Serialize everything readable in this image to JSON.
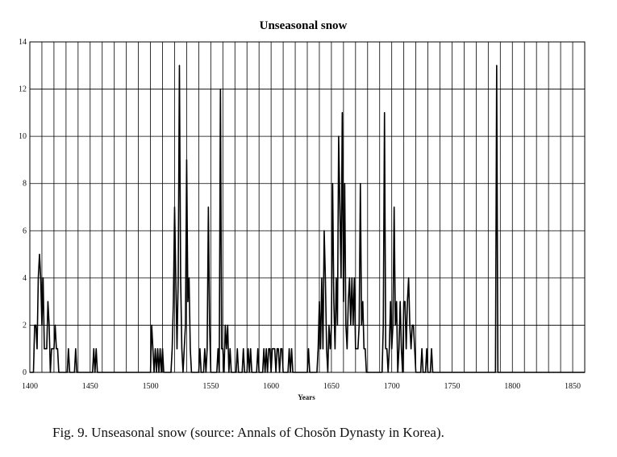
{
  "caption": "Fig. 9. Unseasonal snow (source: Annals of Chosŏn Dynasty in Korea).",
  "chart_data": {
    "type": "line",
    "title": "Unseasonal snow",
    "xlabel": "Years",
    "ylabel": "",
    "xlim": [
      1400,
      1860
    ],
    "ylim": [
      0,
      14
    ],
    "xticks": [
      1400,
      1450,
      1500,
      1550,
      1600,
      1650,
      1700,
      1750,
      1800,
      1850
    ],
    "yticks": [
      0,
      2,
      4,
      6,
      8,
      10,
      12,
      14
    ],
    "grid": true,
    "line_color": "#000000",
    "series": [
      {
        "name": "",
        "points": [
          [
            1400,
            0
          ],
          [
            1403,
            0
          ],
          [
            1404,
            2
          ],
          [
            1405,
            2
          ],
          [
            1406,
            1
          ],
          [
            1407,
            4
          ],
          [
            1408,
            5
          ],
          [
            1409,
            4
          ],
          [
            1410,
            2
          ],
          [
            1411,
            4
          ],
          [
            1412,
            1
          ],
          [
            1413,
            1
          ],
          [
            1414,
            1
          ],
          [
            1415,
            3
          ],
          [
            1416,
            2
          ],
          [
            1417,
            0
          ],
          [
            1418,
            1
          ],
          [
            1419,
            1
          ],
          [
            1420,
            1
          ],
          [
            1421,
            2
          ],
          [
            1422,
            1
          ],
          [
            1423,
            1
          ],
          [
            1424,
            0
          ],
          [
            1431,
            0
          ],
          [
            1432,
            1
          ],
          [
            1433,
            0
          ],
          [
            1437,
            0
          ],
          [
            1438,
            1
          ],
          [
            1439,
            0
          ],
          [
            1452,
            0
          ],
          [
            1453,
            1
          ],
          [
            1454,
            0
          ],
          [
            1455,
            1
          ],
          [
            1456,
            0
          ],
          [
            1500,
            0
          ],
          [
            1501,
            2
          ],
          [
            1502,
            1
          ],
          [
            1503,
            0
          ],
          [
            1504,
            1
          ],
          [
            1505,
            0
          ],
          [
            1506,
            1
          ],
          [
            1507,
            0
          ],
          [
            1508,
            1
          ],
          [
            1509,
            0
          ],
          [
            1510,
            1
          ],
          [
            1511,
            0
          ],
          [
            1517,
            0
          ],
          [
            1518,
            1
          ],
          [
            1519,
            3
          ],
          [
            1520,
            7
          ],
          [
            1521,
            4
          ],
          [
            1522,
            1
          ],
          [
            1523,
            4
          ],
          [
            1524,
            13
          ],
          [
            1525,
            4
          ],
          [
            1526,
            1
          ],
          [
            1527,
            0
          ],
          [
            1528,
            1
          ],
          [
            1529,
            2
          ],
          [
            1530,
            9
          ],
          [
            1531,
            3
          ],
          [
            1532,
            4
          ],
          [
            1533,
            1
          ],
          [
            1534,
            0
          ],
          [
            1540,
            0
          ],
          [
            1541,
            1
          ],
          [
            1542,
            0
          ],
          [
            1544,
            0
          ],
          [
            1545,
            1
          ],
          [
            1546,
            0
          ],
          [
            1547,
            1
          ],
          [
            1548,
            7
          ],
          [
            1549,
            2
          ],
          [
            1550,
            0
          ],
          [
            1555,
            0
          ],
          [
            1556,
            1
          ],
          [
            1557,
            0
          ],
          [
            1558,
            12
          ],
          [
            1559,
            1
          ],
          [
            1560,
            1
          ],
          [
            1561,
            0
          ],
          [
            1562,
            2
          ],
          [
            1563,
            1
          ],
          [
            1564,
            2
          ],
          [
            1565,
            0
          ],
          [
            1566,
            1
          ],
          [
            1567,
            0
          ],
          [
            1571,
            0
          ],
          [
            1572,
            1
          ],
          [
            1573,
            0
          ],
          [
            1576,
            0
          ],
          [
            1577,
            1
          ],
          [
            1578,
            0
          ],
          [
            1580,
            0
          ],
          [
            1581,
            1
          ],
          [
            1582,
            0
          ],
          [
            1583,
            1
          ],
          [
            1584,
            0
          ],
          [
            1588,
            0
          ],
          [
            1589,
            1
          ],
          [
            1590,
            0
          ],
          [
            1593,
            0
          ],
          [
            1594,
            1
          ],
          [
            1595,
            0
          ],
          [
            1596,
            1
          ],
          [
            1597,
            0
          ],
          [
            1598,
            1
          ],
          [
            1599,
            1
          ],
          [
            1600,
            0
          ],
          [
            1601,
            1
          ],
          [
            1602,
            1
          ],
          [
            1603,
            1
          ],
          [
            1604,
            0
          ],
          [
            1605,
            1
          ],
          [
            1606,
            1
          ],
          [
            1607,
            0
          ],
          [
            1608,
            1
          ],
          [
            1609,
            1
          ],
          [
            1610,
            0
          ],
          [
            1614,
            0
          ],
          [
            1615,
            1
          ],
          [
            1616,
            0
          ],
          [
            1617,
            1
          ],
          [
            1618,
            0
          ],
          [
            1630,
            0
          ],
          [
            1631,
            1
          ],
          [
            1632,
            0
          ],
          [
            1638,
            0
          ],
          [
            1639,
            1
          ],
          [
            1640,
            3
          ],
          [
            1641,
            1
          ],
          [
            1642,
            4
          ],
          [
            1643,
            1
          ],
          [
            1644,
            6
          ],
          [
            1645,
            4
          ],
          [
            1646,
            1
          ],
          [
            1647,
            0
          ],
          [
            1648,
            2
          ],
          [
            1649,
            1
          ],
          [
            1650,
            2
          ],
          [
            1651,
            8
          ],
          [
            1652,
            3
          ],
          [
            1653,
            1
          ],
          [
            1654,
            4
          ],
          [
            1655,
            2
          ],
          [
            1656,
            10
          ],
          [
            1657,
            7
          ],
          [
            1658,
            4
          ],
          [
            1659,
            11
          ],
          [
            1660,
            3
          ],
          [
            1661,
            8
          ],
          [
            1662,
            2
          ],
          [
            1663,
            1
          ],
          [
            1664,
            3
          ],
          [
            1665,
            4
          ],
          [
            1666,
            2
          ],
          [
            1667,
            4
          ],
          [
            1668,
            2
          ],
          [
            1669,
            4
          ],
          [
            1670,
            1
          ],
          [
            1671,
            1
          ],
          [
            1672,
            1
          ],
          [
            1673,
            2
          ],
          [
            1674,
            8
          ],
          [
            1675,
            2
          ],
          [
            1676,
            3
          ],
          [
            1677,
            1
          ],
          [
            1678,
            1
          ],
          [
            1679,
            0
          ],
          [
            1692,
            0
          ],
          [
            1693,
            2
          ],
          [
            1694,
            11
          ],
          [
            1695,
            1
          ],
          [
            1696,
            1
          ],
          [
            1697,
            0
          ],
          [
            1698,
            1
          ],
          [
            1699,
            3
          ],
          [
            1700,
            1
          ],
          [
            1701,
            2
          ],
          [
            1702,
            7
          ],
          [
            1703,
            2
          ],
          [
            1704,
            3
          ],
          [
            1705,
            0
          ],
          [
            1706,
            1
          ],
          [
            1707,
            3
          ],
          [
            1708,
            1
          ],
          [
            1709,
            0
          ],
          [
            1710,
            3
          ],
          [
            1711,
            3
          ],
          [
            1712,
            1
          ],
          [
            1713,
            3
          ],
          [
            1714,
            4
          ],
          [
            1715,
            2
          ],
          [
            1716,
            1
          ],
          [
            1717,
            2
          ],
          [
            1718,
            2
          ],
          [
            1719,
            1
          ],
          [
            1720,
            0
          ],
          [
            1724,
            0
          ],
          [
            1725,
            1
          ],
          [
            1726,
            0
          ],
          [
            1728,
            0
          ],
          [
            1729,
            1
          ],
          [
            1730,
            0
          ],
          [
            1732,
            0
          ],
          [
            1733,
            1
          ],
          [
            1734,
            0
          ],
          [
            1786,
            0
          ],
          [
            1787,
            13
          ],
          [
            1788,
            0
          ],
          [
            1860,
            0
          ]
        ]
      }
    ]
  }
}
